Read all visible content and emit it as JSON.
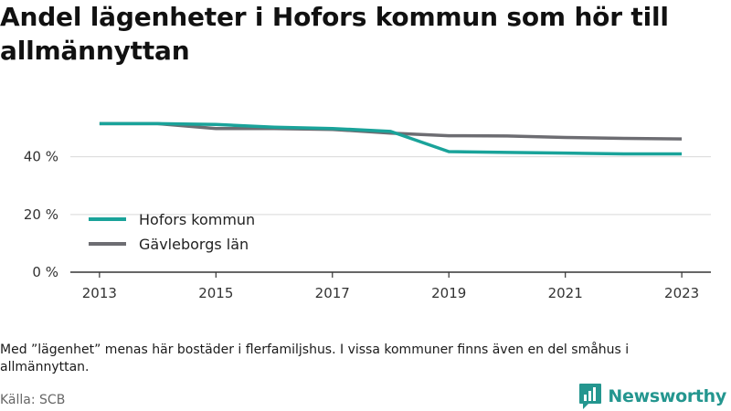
{
  "title": "Andel lägenheter i Hofors kommun som hör till allmännyttan",
  "note": "Med ”lägenhet” menas här bostäder i flerfamiljshus. I vissa kommuner finns även en del småhus i allmännyttan.",
  "source": "Källa: SCB",
  "logo": {
    "text": "Newsworthy",
    "icon": "newsworthy-chart-icon",
    "color": "#24968f"
  },
  "chart_data": {
    "type": "line",
    "title": "Andel lägenheter i Hofors kommun som hör till allmännyttan",
    "xlabel": "",
    "ylabel": "",
    "x": [
      2013,
      2014,
      2015,
      2016,
      2017,
      2018,
      2019,
      2020,
      2021,
      2022,
      2023
    ],
    "xlim": [
      2012.5,
      2023.5
    ],
    "ylim": [
      0,
      57
    ],
    "x_ticks": [
      2013,
      2015,
      2017,
      2019,
      2021,
      2023
    ],
    "x_tick_labels": [
      "2013",
      "2015",
      "2017",
      "2019",
      "2021",
      "2023"
    ],
    "y_ticks": [
      0,
      20,
      40
    ],
    "y_tick_labels": [
      "0 %",
      "20 %",
      "40 %"
    ],
    "grid": "horizontal",
    "legend_position": "left",
    "series": [
      {
        "name": "Hofors kommun",
        "color": "#1aa39a",
        "values": [
          51.5,
          51.5,
          51.2,
          50.3,
          49.8,
          48.8,
          41.8,
          41.5,
          41.3,
          41.0,
          41.0
        ]
      },
      {
        "name": "Gävleborgs län",
        "color": "#6d6d72",
        "values": [
          51.5,
          51.5,
          49.8,
          49.8,
          49.5,
          48.2,
          47.3,
          47.2,
          46.7,
          46.4,
          46.2
        ]
      }
    ]
  }
}
